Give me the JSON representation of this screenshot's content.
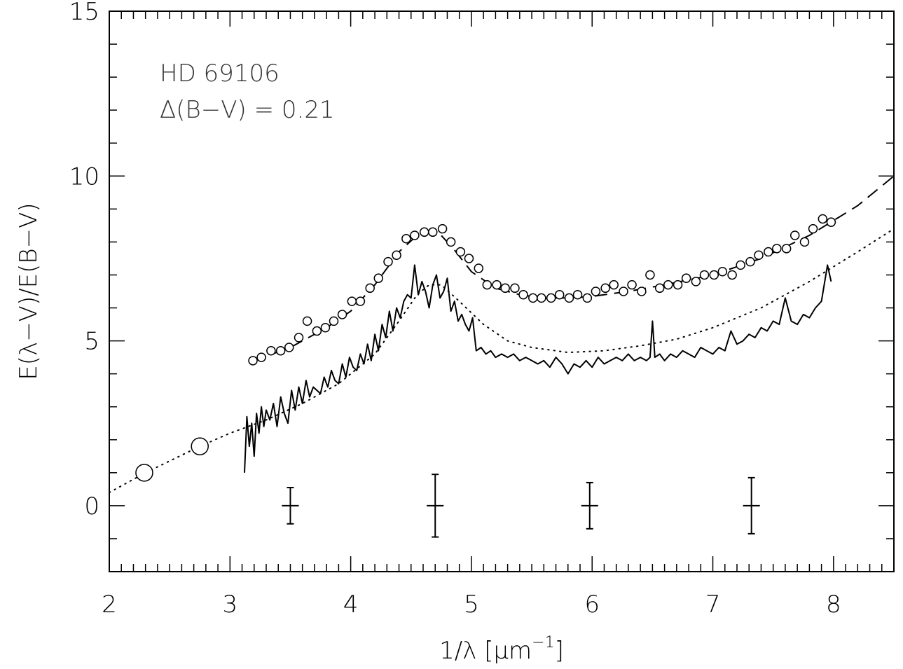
{
  "chart_data": {
    "type": "scatter",
    "xlabel": "1/λ [μm⁻¹]",
    "xlabel_main": "1/λ [μm",
    "xlabel_sup": "−1",
    "xlabel_close": "]",
    "ylabel": "E(λ−V)/E(B−V)",
    "xlim": [
      2,
      8.5
    ],
    "ylim": [
      -2,
      15
    ],
    "x_ticks": [
      2,
      3,
      4,
      5,
      6,
      7,
      8
    ],
    "x_tick_labels": [
      "2",
      "3",
      "4",
      "5",
      "6",
      "7",
      "8"
    ],
    "y_ticks": [
      0,
      5,
      10,
      15
    ],
    "y_tick_labels": [
      "0",
      "5",
      "10",
      "15"
    ],
    "grid": false,
    "annotations": [
      "HD 69106",
      "Δ(B−V) = 0.21"
    ],
    "series": [
      {
        "style": "open-circles",
        "x": [
          3.19,
          3.26,
          3.34,
          3.42,
          3.49,
          3.57,
          3.64,
          3.72,
          3.79,
          3.86,
          3.93,
          4.01,
          4.08,
          4.16,
          4.23,
          4.31,
          4.38,
          4.46,
          4.53,
          4.61,
          4.68,
          4.76,
          4.83,
          4.91,
          4.98,
          5.06,
          5.13,
          5.21,
          5.28,
          5.36,
          5.43,
          5.51,
          5.58,
          5.66,
          5.73,
          5.81,
          5.88,
          5.96,
          6.03,
          6.11,
          6.18,
          6.26,
          6.33,
          6.41,
          6.48,
          6.56,
          6.63,
          6.71,
          6.78,
          6.86,
          6.93,
          7.01,
          7.08,
          7.16,
          7.23,
          7.31,
          7.38,
          7.46,
          7.53,
          7.61,
          7.68,
          7.76,
          7.83,
          7.91,
          7.98
        ],
        "y": [
          4.4,
          4.5,
          4.7,
          4.7,
          4.8,
          5.1,
          5.6,
          5.3,
          5.4,
          5.6,
          5.8,
          6.2,
          6.2,
          6.6,
          6.9,
          7.4,
          7.6,
          8.1,
          8.2,
          8.3,
          8.3,
          8.4,
          8.0,
          7.7,
          7.5,
          7.2,
          6.7,
          6.7,
          6.6,
          6.6,
          6.4,
          6.3,
          6.3,
          6.3,
          6.4,
          6.3,
          6.4,
          6.3,
          6.5,
          6.6,
          6.7,
          6.5,
          6.7,
          6.5,
          7.0,
          6.6,
          6.7,
          6.7,
          6.9,
          6.8,
          7.0,
          7.0,
          7.1,
          7.0,
          7.3,
          7.4,
          7.6,
          7.7,
          7.8,
          7.8,
          8.2,
          8.0,
          8.4,
          8.7,
          8.6
        ]
      },
      {
        "style": "large-open-circles",
        "x": [
          2.29,
          2.75
        ],
        "y": [
          1.0,
          1.8
        ]
      },
      {
        "style": "dashed-fit",
        "x": [
          3.2,
          3.5,
          3.8,
          4.0,
          4.2,
          4.4,
          4.55,
          4.65,
          4.75,
          4.85,
          5.0,
          5.2,
          5.4,
          5.6,
          5.8,
          6.0,
          6.3,
          6.6,
          7.0,
          7.4,
          7.8,
          8.2,
          8.5
        ],
        "y": [
          4.4,
          4.8,
          5.4,
          5.9,
          6.7,
          7.7,
          8.2,
          8.3,
          8.2,
          7.8,
          7.1,
          6.6,
          6.4,
          6.3,
          6.3,
          6.35,
          6.5,
          6.7,
          7.0,
          7.5,
          8.2,
          9.1,
          10.0
        ]
      },
      {
        "style": "dotted-fit",
        "x": [
          2.0,
          2.3,
          2.75,
          3.0,
          3.3,
          3.6,
          3.9,
          4.2,
          4.4,
          4.55,
          4.65,
          4.75,
          4.9,
          5.1,
          5.3,
          5.5,
          5.8,
          6.1,
          6.4,
          6.7,
          7.0,
          7.4,
          7.8,
          8.2,
          8.5
        ],
        "y": [
          0.4,
          1.0,
          1.8,
          2.2,
          2.6,
          3.1,
          3.7,
          4.6,
          5.6,
          6.4,
          6.7,
          6.7,
          6.2,
          5.5,
          5.0,
          4.8,
          4.65,
          4.7,
          4.85,
          5.05,
          5.4,
          6.0,
          6.8,
          7.7,
          8.4
        ]
      },
      {
        "style": "solid-line",
        "x": [
          3.12,
          3.14,
          3.16,
          3.18,
          3.2,
          3.22,
          3.24,
          3.26,
          3.28,
          3.3,
          3.33,
          3.36,
          3.39,
          3.42,
          3.45,
          3.48,
          3.51,
          3.54,
          3.57,
          3.6,
          3.63,
          3.66,
          3.69,
          3.72,
          3.75,
          3.78,
          3.81,
          3.84,
          3.87,
          3.9,
          3.93,
          3.96,
          3.99,
          4.02,
          4.05,
          4.08,
          4.11,
          4.14,
          4.17,
          4.2,
          4.23,
          4.26,
          4.29,
          4.32,
          4.35,
          4.38,
          4.41,
          4.44,
          4.47,
          4.5,
          4.53,
          4.56,
          4.59,
          4.62,
          4.65,
          4.68,
          4.71,
          4.74,
          4.77,
          4.8,
          4.83,
          4.86,
          4.89,
          4.92,
          4.95,
          4.98,
          5.01,
          5.04,
          5.08,
          5.12,
          5.16,
          5.2,
          5.25,
          5.3,
          5.35,
          5.4,
          5.45,
          5.5,
          5.55,
          5.6,
          5.65,
          5.7,
          5.75,
          5.8,
          5.85,
          5.9,
          5.95,
          6.0,
          6.05,
          6.1,
          6.15,
          6.2,
          6.25,
          6.3,
          6.35,
          6.4,
          6.45,
          6.48,
          6.5,
          6.52,
          6.56,
          6.6,
          6.65,
          6.7,
          6.75,
          6.8,
          6.85,
          6.9,
          6.95,
          7.0,
          7.05,
          7.1,
          7.15,
          7.2,
          7.25,
          7.3,
          7.35,
          7.4,
          7.45,
          7.5,
          7.55,
          7.6,
          7.65,
          7.7,
          7.75,
          7.8,
          7.85,
          7.9,
          7.95,
          7.98
        ],
        "y": [
          1.0,
          2.7,
          1.8,
          2.5,
          1.5,
          2.8,
          2.2,
          3.0,
          2.4,
          2.9,
          2.6,
          3.1,
          2.4,
          3.3,
          2.8,
          2.5,
          3.5,
          2.9,
          3.6,
          3.1,
          3.8,
          3.3,
          3.6,
          3.5,
          3.4,
          3.9,
          3.6,
          4.1,
          3.8,
          3.7,
          4.3,
          3.9,
          4.5,
          4.2,
          4.1,
          4.6,
          4.3,
          4.9,
          4.4,
          5.2,
          4.7,
          5.5,
          5.1,
          5.9,
          5.3,
          6.0,
          5.7,
          6.2,
          6.4,
          6.3,
          7.3,
          6.4,
          6.8,
          6.5,
          6.0,
          6.7,
          7.0,
          6.3,
          6.5,
          6.9,
          5.9,
          6.2,
          5.6,
          5.8,
          5.5,
          5.3,
          5.7,
          4.7,
          4.8,
          4.6,
          4.7,
          4.5,
          4.6,
          4.5,
          4.6,
          4.4,
          4.5,
          4.4,
          4.3,
          4.4,
          4.2,
          4.5,
          4.3,
          4.0,
          4.3,
          4.2,
          4.4,
          4.2,
          4.5,
          4.3,
          4.4,
          4.5,
          4.4,
          4.6,
          4.4,
          4.5,
          4.4,
          4.5,
          5.6,
          4.5,
          4.6,
          4.4,
          4.6,
          4.5,
          4.7,
          4.6,
          4.5,
          4.8,
          4.7,
          4.6,
          4.8,
          4.7,
          5.3,
          4.9,
          5.0,
          5.2,
          5.1,
          5.4,
          5.3,
          5.6,
          5.5,
          6.3,
          5.6,
          5.5,
          5.8,
          5.7,
          6.0,
          6.2,
          7.3,
          6.8
        ]
      },
      {
        "style": "error-bars",
        "x": [
          3.5,
          4.7,
          5.98,
          7.32
        ],
        "y": [
          0,
          0,
          0,
          0
        ],
        "err": [
          0.55,
          0.95,
          0.7,
          0.85
        ],
        "xerr": [
          0.07,
          0.07,
          0.07,
          0.07
        ]
      }
    ]
  }
}
